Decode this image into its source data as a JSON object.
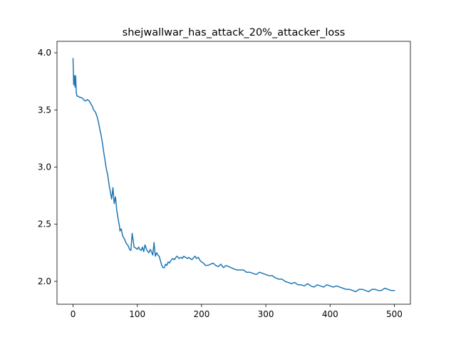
{
  "chart_data": {
    "type": "line",
    "title": "shejwallwar_has_attack_20%_attacker_loss",
    "xlabel": "",
    "ylabel": "",
    "xlim": [
      -25,
      525
    ],
    "ylim": [
      1.8,
      4.1
    ],
    "x_ticks": [
      0,
      100,
      200,
      300,
      400,
      500
    ],
    "y_ticks": [
      2.0,
      2.5,
      3.0,
      3.5,
      4.0
    ],
    "x_tick_labels": [
      "0",
      "100",
      "200",
      "300",
      "400",
      "500"
    ],
    "y_tick_labels": [
      "2.0",
      "2.5",
      "3.0",
      "3.5",
      "4.0"
    ],
    "grid": false,
    "series": [
      {
        "color": "#1f77b4",
        "x": [
          0,
          1,
          2,
          3,
          4,
          5,
          6,
          8,
          10,
          12,
          15,
          18,
          20,
          22,
          25,
          28,
          30,
          32,
          35,
          38,
          40,
          42,
          44,
          46,
          48,
          50,
          52,
          54,
          56,
          58,
          60,
          62,
          64,
          66,
          68,
          70,
          71,
          72,
          73,
          75,
          77,
          80,
          83,
          85,
          88,
          90,
          92,
          95,
          98,
          100,
          102,
          104,
          106,
          108,
          110,
          112,
          115,
          118,
          120,
          122,
          124,
          126,
          128,
          130,
          132,
          134,
          136,
          138,
          140,
          142,
          144,
          146,
          148,
          150,
          152,
          155,
          158,
          160,
          162,
          165,
          168,
          170,
          172,
          175,
          178,
          180,
          182,
          185,
          188,
          190,
          192,
          195,
          198,
          200,
          203,
          206,
          210,
          214,
          218,
          222,
          226,
          230,
          234,
          238,
          242,
          246,
          250,
          255,
          260,
          265,
          270,
          275,
          280,
          285,
          290,
          295,
          300,
          305,
          310,
          315,
          320,
          325,
          330,
          335,
          340,
          345,
          350,
          355,
          360,
          365,
          370,
          375,
          380,
          385,
          390,
          395,
          400,
          405,
          410,
          415,
          420,
          425,
          430,
          435,
          440,
          445,
          450,
          455,
          460,
          465,
          470,
          475,
          480,
          485,
          490,
          495,
          500
        ],
        "y": [
          3.95,
          3.72,
          3.8,
          3.7,
          3.8,
          3.65,
          3.62,
          3.62,
          3.61,
          3.61,
          3.6,
          3.58,
          3.58,
          3.59,
          3.58,
          3.55,
          3.53,
          3.5,
          3.48,
          3.43,
          3.38,
          3.32,
          3.27,
          3.2,
          3.12,
          3.05,
          2.98,
          2.93,
          2.85,
          2.78,
          2.72,
          2.82,
          2.68,
          2.74,
          2.62,
          2.55,
          2.52,
          2.49,
          2.44,
          2.46,
          2.4,
          2.37,
          2.33,
          2.32,
          2.28,
          2.27,
          2.42,
          2.3,
          2.29,
          2.28,
          2.3,
          2.28,
          2.27,
          2.3,
          2.26,
          2.32,
          2.27,
          2.25,
          2.28,
          2.26,
          2.23,
          2.34,
          2.22,
          2.25,
          2.23,
          2.22,
          2.18,
          2.14,
          2.12,
          2.12,
          2.15,
          2.14,
          2.17,
          2.16,
          2.18,
          2.2,
          2.19,
          2.21,
          2.22,
          2.2,
          2.21,
          2.2,
          2.22,
          2.21,
          2.2,
          2.21,
          2.2,
          2.19,
          2.21,
          2.22,
          2.2,
          2.21,
          2.18,
          2.17,
          2.16,
          2.14,
          2.14,
          2.15,
          2.16,
          2.14,
          2.13,
          2.15,
          2.12,
          2.14,
          2.13,
          2.12,
          2.11,
          2.1,
          2.1,
          2.1,
          2.08,
          2.08,
          2.07,
          2.06,
          2.08,
          2.07,
          2.06,
          2.05,
          2.05,
          2.03,
          2.02,
          2.02,
          2.0,
          1.99,
          1.98,
          1.99,
          1.97,
          1.97,
          1.96,
          1.98,
          1.96,
          1.95,
          1.97,
          1.96,
          1.95,
          1.97,
          1.96,
          1.95,
          1.96,
          1.95,
          1.94,
          1.93,
          1.93,
          1.92,
          1.91,
          1.93,
          1.93,
          1.92,
          1.91,
          1.93,
          1.93,
          1.92,
          1.92,
          1.94,
          1.93,
          1.92,
          1.92
        ]
      }
    ]
  }
}
